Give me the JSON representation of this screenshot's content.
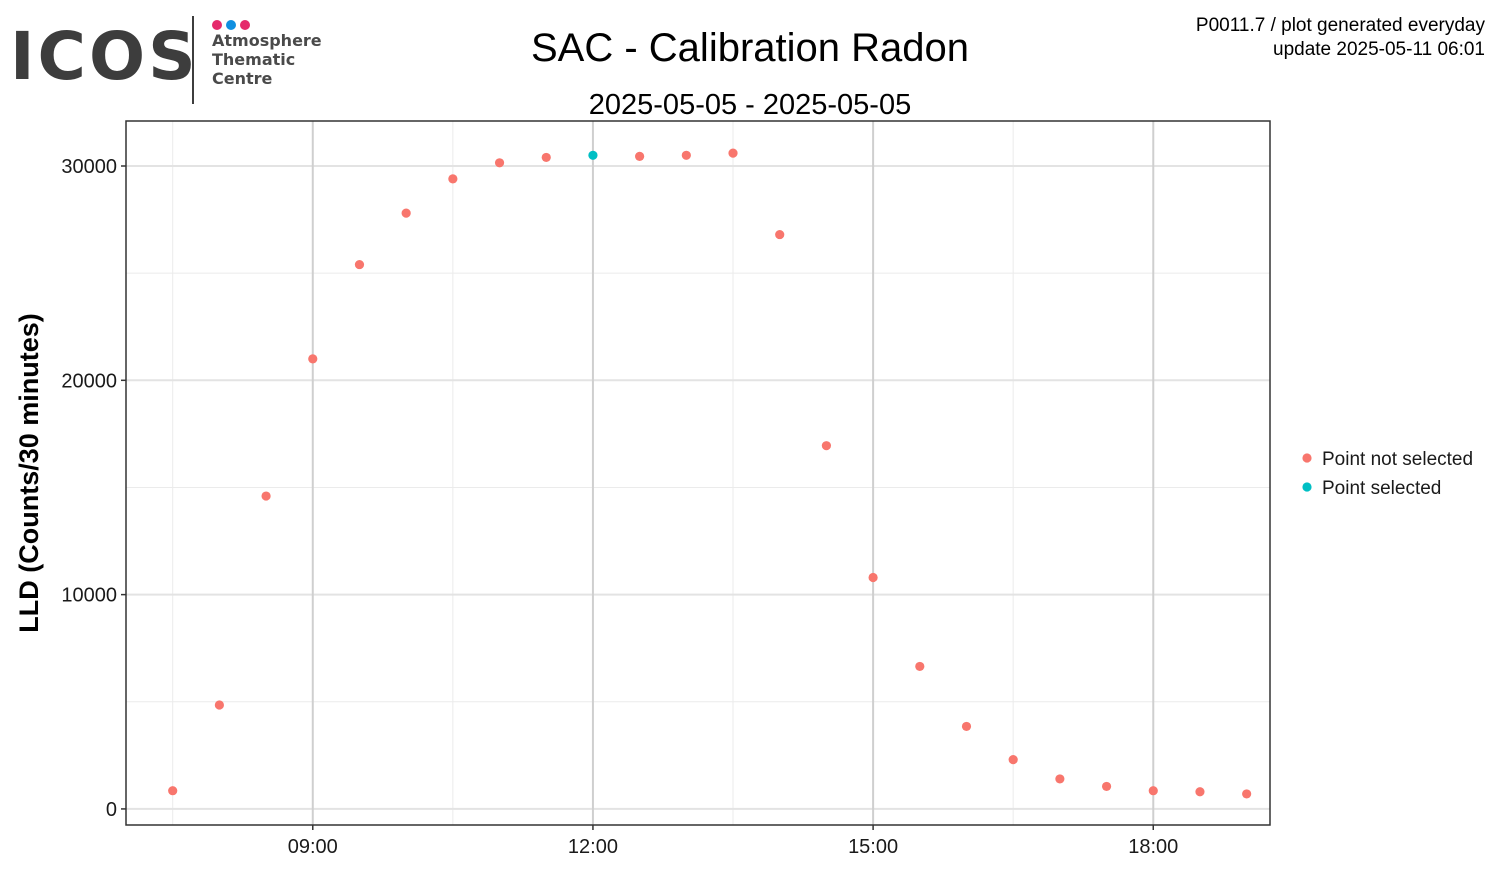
{
  "logo": {
    "wordmark": "ICOS",
    "lines": [
      "Atmosphere",
      "Thematic",
      "Centre"
    ],
    "dot_colors": [
      "#e5296b",
      "#0f8fe0",
      "#e5296b"
    ]
  },
  "header": {
    "title": "SAC - Calibration Radon",
    "subtitle": "2025-05-05 - 2025-05-05",
    "meta_line1": "P0011.7 / plot generated everyday",
    "meta_line2": "update  2025-05-11 06:01"
  },
  "chart_data": {
    "type": "scatter",
    "ylabel": "LLD (Counts/30 minutes)",
    "xlabel": "",
    "x_unit": "time of day (hours)",
    "xlim": [
      7.0,
      19.25
    ],
    "ylim": [
      -750,
      32100
    ],
    "x_ticks": [
      {
        "value": 9,
        "label": "09:00"
      },
      {
        "value": 12,
        "label": "12:00"
      },
      {
        "value": 15,
        "label": "15:00"
      },
      {
        "value": 18,
        "label": "18:00"
      }
    ],
    "y_ticks": [
      {
        "value": 0,
        "label": "0"
      },
      {
        "value": 10000,
        "label": "10000"
      },
      {
        "value": 20000,
        "label": "20000"
      },
      {
        "value": 30000,
        "label": "30000"
      }
    ],
    "grid": true,
    "legend_position": "right",
    "series": [
      {
        "name": "Point not selected",
        "color": "#f8766d",
        "points": [
          {
            "x": 7.5,
            "y": 850
          },
          {
            "x": 8.0,
            "y": 4850
          },
          {
            "x": 8.5,
            "y": 14600
          },
          {
            "x": 9.0,
            "y": 21000
          },
          {
            "x": 9.5,
            "y": 25400
          },
          {
            "x": 10.0,
            "y": 27800
          },
          {
            "x": 10.5,
            "y": 29400
          },
          {
            "x": 11.0,
            "y": 30150
          },
          {
            "x": 11.5,
            "y": 30400
          },
          {
            "x": 12.5,
            "y": 30450
          },
          {
            "x": 13.0,
            "y": 30500
          },
          {
            "x": 13.5,
            "y": 30600
          },
          {
            "x": 14.0,
            "y": 26800
          },
          {
            "x": 14.5,
            "y": 16950
          },
          {
            "x": 15.0,
            "y": 10800
          },
          {
            "x": 15.5,
            "y": 6650
          },
          {
            "x": 16.0,
            "y": 3850
          },
          {
            "x": 16.5,
            "y": 2300
          },
          {
            "x": 17.0,
            "y": 1400
          },
          {
            "x": 17.5,
            "y": 1050
          },
          {
            "x": 18.0,
            "y": 850
          },
          {
            "x": 18.5,
            "y": 800
          },
          {
            "x": 19.0,
            "y": 700
          }
        ]
      },
      {
        "name": "Point selected",
        "color": "#00bfc4",
        "points": [
          {
            "x": 12.0,
            "y": 30500
          }
        ]
      }
    ]
  }
}
